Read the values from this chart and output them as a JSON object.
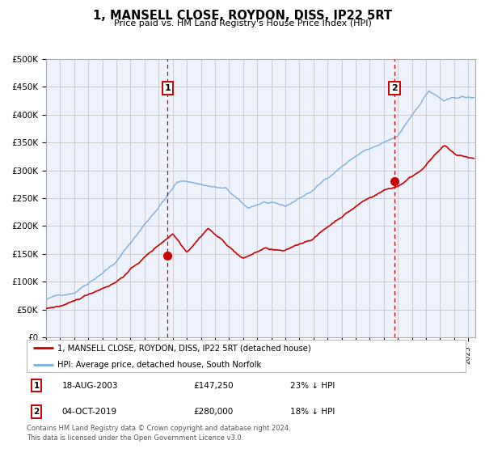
{
  "title": "1, MANSELL CLOSE, ROYDON, DISS, IP22 5RT",
  "subtitle": "Price paid vs. HM Land Registry's House Price Index (HPI)",
  "ylabel_ticks": [
    "£0",
    "£50K",
    "£100K",
    "£150K",
    "£200K",
    "£250K",
    "£300K",
    "£350K",
    "£400K",
    "£450K",
    "£500K"
  ],
  "ytick_values": [
    0,
    50000,
    100000,
    150000,
    200000,
    250000,
    300000,
    350000,
    400000,
    450000,
    500000
  ],
  "xlim_start": 1995.0,
  "xlim_end": 2025.5,
  "ylim_min": 0,
  "ylim_max": 500000,
  "red_line_color": "#cc0000",
  "blue_line_color": "#7aaddb",
  "grid_color": "#cccccc",
  "background_color": "#eef2fc",
  "vline_color": "#cc0000",
  "marker1_date": 2003.63,
  "marker2_date": 2019.75,
  "marker1_value": 147250,
  "marker2_value": 280000,
  "legend_label_red": "1, MANSELL CLOSE, ROYDON, DISS, IP22 5RT (detached house)",
  "legend_label_blue": "HPI: Average price, detached house, South Norfolk",
  "footer": "Contains HM Land Registry data © Crown copyright and database right 2024.\nThis data is licensed under the Open Government Licence v3.0.",
  "seed": 42
}
